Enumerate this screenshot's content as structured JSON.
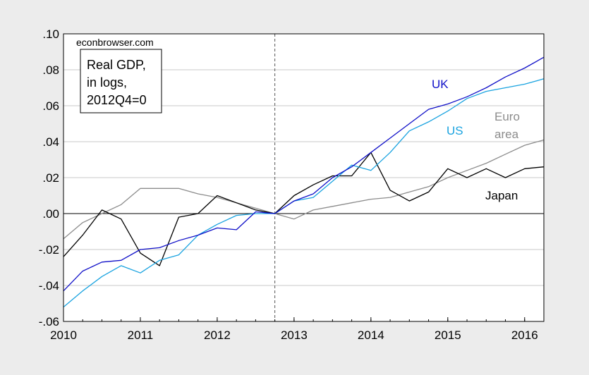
{
  "chart_data": {
    "type": "line",
    "ylim": [
      -0.06,
      0.1
    ],
    "xlim": [
      2010.0,
      2016.25
    ],
    "y_ticks": [
      ".10",
      ".08",
      ".06",
      ".04",
      ".02",
      ".00",
      "-.02",
      "-.04",
      "-.06"
    ],
    "x_ticks": [
      "2010",
      "2011",
      "2012",
      "2013",
      "2014",
      "2015",
      "2016"
    ],
    "vertical_marker_x": 2012.75,
    "zero_line": true,
    "grid": true,
    "x": [
      2010.0,
      2010.25,
      2010.5,
      2010.75,
      2011.0,
      2011.25,
      2011.5,
      2011.75,
      2012.0,
      2012.25,
      2012.5,
      2012.75,
      2013.0,
      2013.25,
      2013.5,
      2013.75,
      2014.0,
      2014.25,
      2014.5,
      2014.75,
      2015.0,
      2015.25,
      2015.5,
      2015.75,
      2016.0,
      2016.25
    ],
    "series": [
      {
        "name": "UK",
        "color": "#1010c8",
        "values": [
          -0.043,
          -0.032,
          -0.027,
          -0.026,
          -0.02,
          -0.019,
          -0.015,
          -0.012,
          -0.008,
          -0.009,
          0.001,
          0.0,
          0.007,
          0.011,
          0.02,
          0.026,
          0.034,
          0.042,
          0.05,
          0.058,
          0.061,
          0.065,
          0.07,
          0.076,
          0.081,
          0.087
        ]
      },
      {
        "name": "US",
        "color": "#1aa3e0",
        "values": [
          -0.052,
          -0.043,
          -0.035,
          -0.029,
          -0.033,
          -0.026,
          -0.023,
          -0.012,
          -0.006,
          -0.001,
          0.0,
          0.0,
          0.007,
          0.009,
          0.018,
          0.027,
          0.024,
          0.034,
          0.046,
          0.051,
          0.057,
          0.064,
          0.068,
          0.07,
          0.072,
          0.075
        ]
      },
      {
        "name": "Euro area",
        "color": "#8c8c8c",
        "values": [
          -0.014,
          -0.005,
          0.0,
          0.005,
          0.014,
          0.014,
          0.014,
          0.011,
          0.009,
          0.006,
          0.003,
          0.0,
          -0.003,
          0.002,
          0.004,
          0.006,
          0.008,
          0.009,
          0.012,
          0.015,
          0.02,
          0.024,
          0.028,
          0.033,
          0.038,
          0.041
        ]
      },
      {
        "name": "Japan",
        "color": "#000000",
        "values": [
          -0.024,
          -0.012,
          0.002,
          -0.003,
          -0.022,
          -0.029,
          -0.002,
          0.0,
          0.01,
          0.006,
          0.002,
          0.0,
          0.01,
          0.016,
          0.021,
          0.021,
          0.034,
          0.013,
          0.007,
          0.012,
          0.025,
          0.02,
          0.025,
          0.02,
          0.025,
          0.026
        ]
      }
    ]
  },
  "annotations": {
    "watermark": "econbrowser.com",
    "legend_box_lines": [
      "Real GDP,",
      "in logs,",
      "2012Q4=0"
    ],
    "label_uk": "UK",
    "label_us": "US",
    "label_euro_1": "Euro",
    "label_euro_2": "area",
    "label_japan": "Japan"
  }
}
